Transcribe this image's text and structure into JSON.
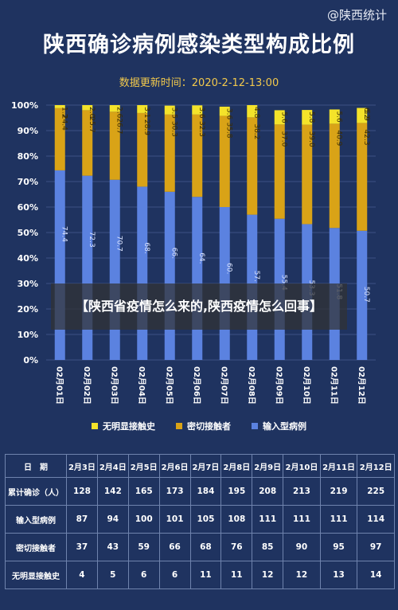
{
  "watermark": "@陕西统计",
  "title": "陕西确诊病例感染类型构成比例",
  "subtitle": "数据更新时间：2020-2-12-13:00",
  "banner": "【陕西省疫情怎么来的,陕西疫情怎么回事】",
  "legend": [
    {
      "label": "无明显接触史",
      "color": "#f4e32a"
    },
    {
      "label": "密切接触者",
      "color": "#d9a317"
    },
    {
      "label": "输入型病例",
      "color": "#5b82e0"
    }
  ],
  "chart_data": {
    "type": "bar",
    "stacked": true,
    "categories": [
      "02月01日",
      "02月02日",
      "02月03日",
      "02月04日",
      "02月05日",
      "02月06日",
      "02月07日",
      "02月08日",
      "02月09日",
      "02月10日",
      "02月11日",
      "02月12日"
    ],
    "y_ticks": [
      "0%",
      "10%",
      "20%",
      "30%",
      "40%",
      "50%",
      "60%",
      "70%",
      "80%",
      "90%",
      "100%"
    ],
    "ylim": [
      0,
      100
    ],
    "series": [
      {
        "name": "输入型病例",
        "color": "#5b82e0",
        "values": [
          74.4,
          72.3,
          70.7,
          68.0,
          66.0,
          64.0,
          60.0,
          57.0,
          55.4,
          53.3,
          51.8,
          50.7
        ],
        "labels": [
          "74.4",
          "72.3",
          "70.7",
          "68.",
          "66.",
          "64.",
          "60.",
          "57.",
          "55.4",
          "53.3",
          "51.8",
          "50.7"
        ]
      },
      {
        "name": "密切接触者",
        "color": "#d9a317",
        "values": [
          24.4,
          25.7,
          26.7,
          28.9,
          30.3,
          32.3,
          35.8,
          38.2,
          37.0,
          39.0,
          40.9,
          42.3
        ],
        "labels": [
          "24.4",
          "25.7",
          "26.7",
          "28.9",
          "30.3",
          "32.3",
          "35.8",
          "38.2",
          "37.0",
          "39.0",
          "40.9",
          "42.3"
        ]
      },
      {
        "name": "无明显接触史",
        "color": "#f4e32a",
        "values": [
          1.2,
          2.0,
          2.6,
          3.1,
          3.5,
          3.6,
          3.6,
          4.8,
          5.6,
          5.8,
          5.6,
          5.9
        ],
        "labels": [
          "1.2",
          "2.0",
          "2.6",
          "3.1",
          "3.5",
          "3.6",
          "3.6",
          "4.8",
          "5.6",
          "5.8",
          "5.6",
          "5.9"
        ]
      }
    ],
    "extra_top_labels": [
      "",
      "",
      "",
      "",
      "",
      "",
      "",
      "",
      "",
      "",
      "",
      "6.2"
    ]
  },
  "table": {
    "header": [
      "日　期",
      "2月3日",
      "2月4日",
      "2月5日",
      "2月6日",
      "2月7日",
      "2月8日",
      "2月9日",
      "2月10日",
      "2月11日",
      "2月12日"
    ],
    "rows": [
      {
        "label": "累计确诊（人）",
        "values": [
          "128",
          "142",
          "165",
          "173",
          "184",
          "195",
          "208",
          "213",
          "219",
          "225"
        ]
      },
      {
        "label": "输入型病例",
        "values": [
          "87",
          "94",
          "100",
          "101",
          "105",
          "108",
          "111",
          "111",
          "111",
          "114"
        ]
      },
      {
        "label": "密切接触者",
        "values": [
          "37",
          "43",
          "59",
          "66",
          "68",
          "76",
          "85",
          "90",
          "95",
          "97"
        ]
      },
      {
        "label": "无明显接触史",
        "values": [
          "4",
          "5",
          "6",
          "6",
          "11",
          "11",
          "12",
          "12",
          "13",
          "14"
        ]
      }
    ]
  }
}
